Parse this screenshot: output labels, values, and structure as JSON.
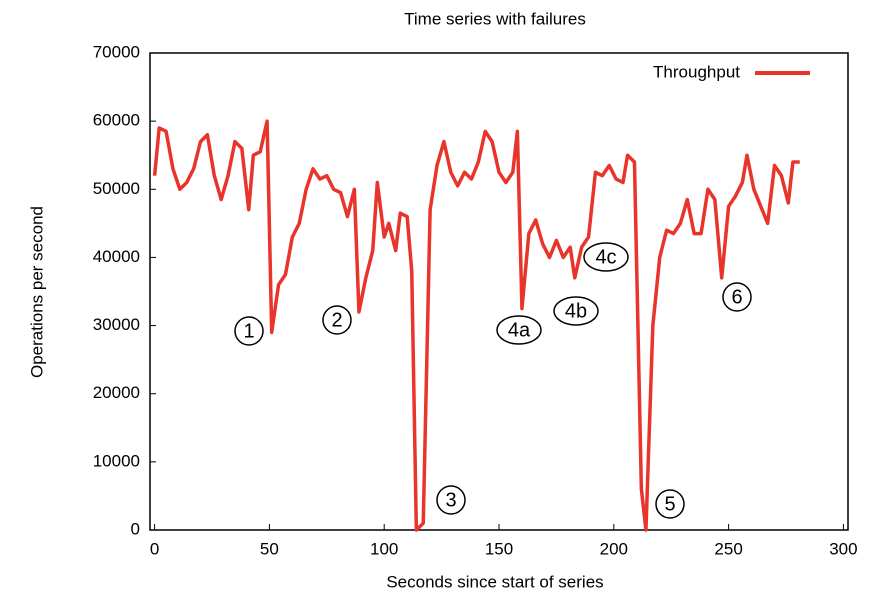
{
  "chart_data": {
    "type": "line",
    "title": "Time series with failures",
    "xlabel": "Seconds since start of series",
    "ylabel": "Operations per second",
    "xlim": [
      -2,
      302
    ],
    "ylim": [
      0,
      70000
    ],
    "xticks": [
      0,
      50,
      100,
      150,
      200,
      250,
      300
    ],
    "yticks": [
      0,
      10000,
      20000,
      30000,
      40000,
      50000,
      60000,
      70000
    ],
    "legend": "upper right",
    "x": [
      0,
      2,
      5,
      8,
      11,
      14,
      17,
      20,
      23,
      26,
      29,
      32,
      35,
      38,
      41,
      43,
      46,
      49,
      51,
      54,
      57,
      60,
      63,
      66,
      69,
      72,
      75,
      78,
      81,
      84,
      87,
      89,
      92,
      95,
      97,
      100,
      102,
      105,
      107,
      110,
      112,
      114,
      117,
      120,
      123,
      126,
      129,
      132,
      135,
      138,
      141,
      144,
      147,
      150,
      153,
      156,
      158,
      160,
      163,
      166,
      169,
      172,
      175,
      178,
      181,
      183,
      186,
      189,
      192,
      195,
      198,
      201,
      204,
      206,
      209,
      212,
      214,
      217,
      220,
      223,
      226,
      229,
      232,
      235,
      238,
      241,
      244,
      247,
      250,
      253,
      256,
      258,
      261,
      264,
      267,
      270,
      273,
      276,
      278,
      281
    ],
    "series": [
      {
        "name": "Throughput",
        "color": "#e8342a",
        "values": [
          52000,
          59000,
          58500,
          53000,
          50000,
          51000,
          53000,
          57000,
          58000,
          52000,
          48500,
          52000,
          57000,
          56000,
          47000,
          55000,
          55500,
          60000,
          29000,
          36000,
          37500,
          43000,
          45000,
          50000,
          53000,
          51500,
          52000,
          50000,
          49500,
          46000,
          50000,
          32000,
          37000,
          41000,
          51000,
          43000,
          45000,
          41000,
          46500,
          46000,
          38000,
          0,
          1000,
          47000,
          53500,
          57000,
          52500,
          50500,
          52500,
          51500,
          54000,
          58500,
          57000,
          52500,
          51000,
          52500,
          58500,
          32500,
          43500,
          45500,
          42000,
          40000,
          42500,
          40000,
          41500,
          37000,
          41500,
          43000,
          52500,
          52000,
          53500,
          51500,
          51000,
          55000,
          54000,
          6000,
          0,
          30000,
          40000,
          44000,
          43500,
          45000,
          48500,
          43500,
          43500,
          50000,
          48500,
          37000,
          47500,
          49000,
          51000,
          55000,
          50000,
          47500,
          45000,
          53500,
          52000,
          48000,
          54000,
          54000
        ]
      }
    ],
    "annotations": [
      "1",
      "2",
      "3",
      "4a",
      "4b",
      "4c",
      "5",
      "6"
    ]
  }
}
